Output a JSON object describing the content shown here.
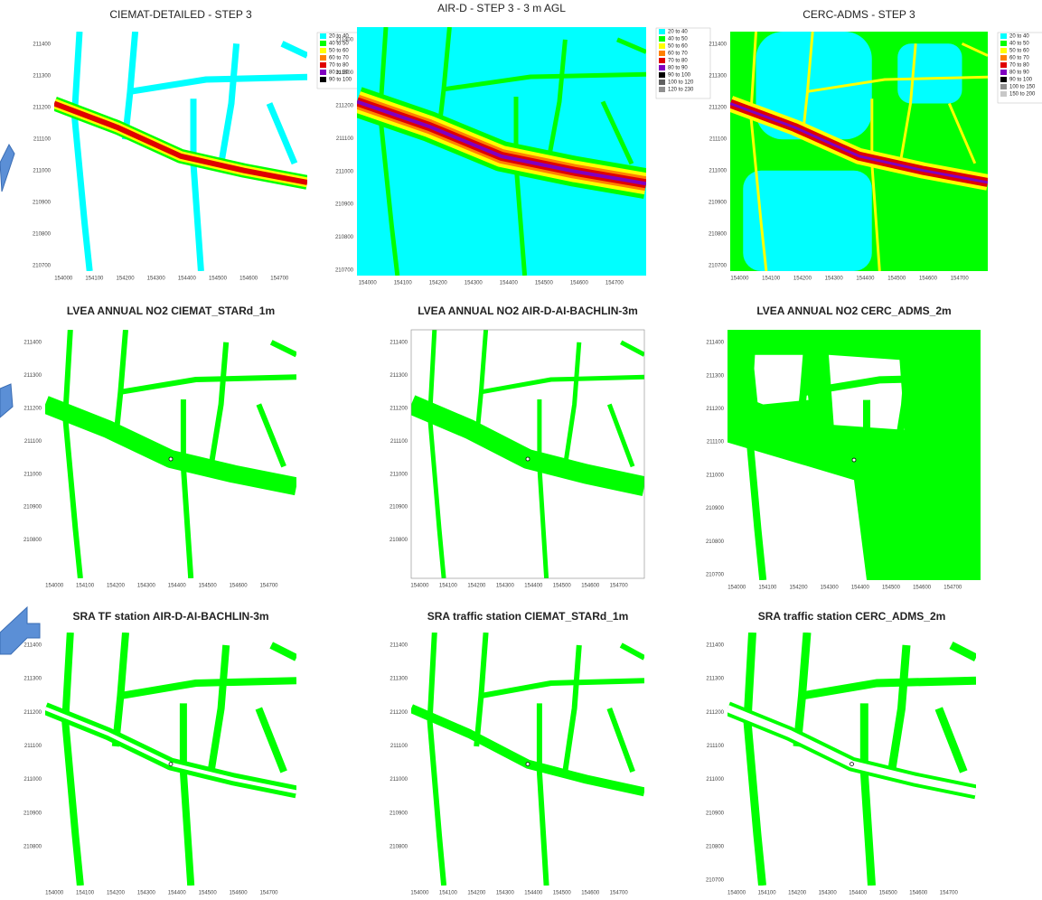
{
  "panels": [
    {
      "title": "CIEMAT-DETAILED - STEP 3",
      "legend": [
        {
          "label": "20 to 40",
          "color": "#00ffff"
        },
        {
          "label": "40 to 50",
          "color": "#00ff00"
        },
        {
          "label": "50 to 60",
          "color": "#ffff00"
        },
        {
          "label": "60 to 70",
          "color": "#ff8000"
        },
        {
          "label": "70 to 80",
          "color": "#e00000"
        },
        {
          "label": "80 to 90",
          "color": "#8000c0"
        },
        {
          "label": "90 to 100",
          "color": "#000000"
        }
      ],
      "x_ticks": [
        "154000",
        "154100",
        "154200",
        "154300",
        "154400",
        "154500",
        "154600",
        "154700"
      ],
      "y_ticks": [
        "211400",
        "211300",
        "211200",
        "211100",
        "211000",
        "210900",
        "210800",
        "210700"
      ]
    },
    {
      "title": "AIR-D - STEP 3 - 3 m AGL",
      "legend": [
        {
          "label": "20 to 40",
          "color": "#00ffff"
        },
        {
          "label": "40 to 50",
          "color": "#00ff00"
        },
        {
          "label": "50 to 60",
          "color": "#ffff00"
        },
        {
          "label": "60 to 70",
          "color": "#ff8000"
        },
        {
          "label": "70 to 80",
          "color": "#e00000"
        },
        {
          "label": "80 to 90",
          "color": "#8000c0"
        },
        {
          "label": "90 to 100",
          "color": "#000000"
        },
        {
          "label": "100 to 120",
          "color": "#606060"
        },
        {
          "label": "120 to 230",
          "color": "#909090"
        }
      ],
      "x_ticks": [
        "154000",
        "154100",
        "154200",
        "154300",
        "154400",
        "154500",
        "154600",
        "154700"
      ],
      "y_ticks": [
        "211400",
        "211300",
        "211200",
        "211100",
        "211000",
        "210900",
        "210800",
        "210700"
      ]
    },
    {
      "title": "CERC-ADMS - STEP 3",
      "legend": [
        {
          "label": "20 to 40",
          "color": "#00ffff"
        },
        {
          "label": "40 to 50",
          "color": "#00ff00"
        },
        {
          "label": "50 to 60",
          "color": "#ffff00"
        },
        {
          "label": "60 to 70",
          "color": "#ff8000"
        },
        {
          "label": "70 to 80",
          "color": "#e00000"
        },
        {
          "label": "80 to 90",
          "color": "#8000c0"
        },
        {
          "label": "90 to 100",
          "color": "#000000"
        },
        {
          "label": "100 to 150",
          "color": "#909090"
        },
        {
          "label": "150 to 200",
          "color": "#c8c8c8"
        }
      ],
      "x_ticks": [
        "154000",
        "154100",
        "154200",
        "154300",
        "154400",
        "154500",
        "154600",
        "154700"
      ],
      "y_ticks": [
        "211400",
        "211300",
        "211200",
        "211100",
        "211000",
        "210900",
        "210800",
        "210700"
      ]
    },
    {
      "title": "LVEA ANNUAL NO2 CIEMAT_STARd_1m",
      "x_ticks": [
        "154000",
        "154100",
        "154200",
        "154300",
        "154400",
        "154500",
        "154600",
        "154700"
      ],
      "y_ticks": [
        "211400",
        "211300",
        "211200",
        "211100",
        "211000",
        "210900",
        "210800"
      ]
    },
    {
      "title": "LVEA ANNUAL NO2 AIR-D-AI-BACHLIN-3m",
      "x_ticks": [
        "154000",
        "154100",
        "154200",
        "154300",
        "154400",
        "154500",
        "154600",
        "154700"
      ],
      "y_ticks": [
        "211400",
        "211300",
        "211200",
        "211100",
        "211000",
        "210900",
        "210800"
      ]
    },
    {
      "title": "LVEA ANNUAL NO2 CERC_ADMS_2m",
      "x_ticks": [
        "154000",
        "154100",
        "154200",
        "154300",
        "154400",
        "154500",
        "154600",
        "154700"
      ],
      "y_ticks": [
        "211400",
        "211300",
        "211200",
        "211100",
        "211000",
        "210900",
        "210800",
        "210700"
      ]
    },
    {
      "title": "SRA TF station AIR-D-AI-BACHLIN-3m",
      "x_ticks": [
        "154000",
        "154100",
        "154200",
        "154300",
        "154400",
        "154500",
        "154600",
        "154700"
      ],
      "y_ticks": [
        "211400",
        "211300",
        "211200",
        "211100",
        "211000",
        "210900",
        "210800"
      ]
    },
    {
      "title": "SRA traffic station CIEMAT_STARd_1m",
      "x_ticks": [
        "154000",
        "154100",
        "154200",
        "154300",
        "154400",
        "154500",
        "154600",
        "154700"
      ],
      "y_ticks": [
        "211400",
        "211300",
        "211200",
        "211100",
        "211000",
        "210900",
        "210800"
      ]
    },
    {
      "title": "SRA traffic station CERC_ADMS_2m",
      "x_ticks": [
        "154000",
        "154100",
        "154200",
        "154300",
        "154400",
        "154500",
        "154600",
        "154700"
      ],
      "y_ticks": [
        "211400",
        "211300",
        "211200",
        "211100",
        "211000",
        "210900",
        "210800",
        "210700"
      ]
    }
  ]
}
